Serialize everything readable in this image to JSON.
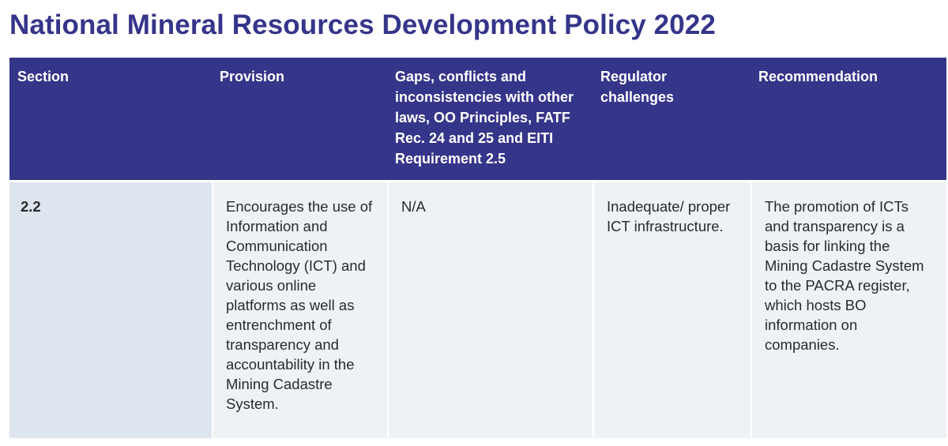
{
  "page": {
    "title": "National Mineral Resources Development Policy 2022"
  },
  "table": {
    "headers": {
      "section": "Section",
      "provision": "Provision",
      "gaps": "Gaps, conflicts and inconsistencies with other laws, OO Principles, FATF Rec. 24 and 25 and EITI Requirement 2.5",
      "regulator": "Regulator challenges",
      "recommendation": "Recommendation"
    },
    "rows": [
      {
        "section": "2.2",
        "provision": "Encourages the use of Information and Communication Technology (ICT) and various online platforms as well as entrenchment of transparency and accountability in the Mining Cadastre System.",
        "gaps": "N/A",
        "regulator": "Inadequate/ proper ICT infrastructure.",
        "recommendation": "The promotion of ICTs and transparency is a basis for linking the Mining Cadastre System to the PACRA register, which hosts BO information on companies."
      }
    ]
  },
  "colors": {
    "header_bg": "#35358a",
    "title_color": "#35358a",
    "cell_bg": "#eef2f7",
    "section_cell_bg": "#dde5ef"
  }
}
